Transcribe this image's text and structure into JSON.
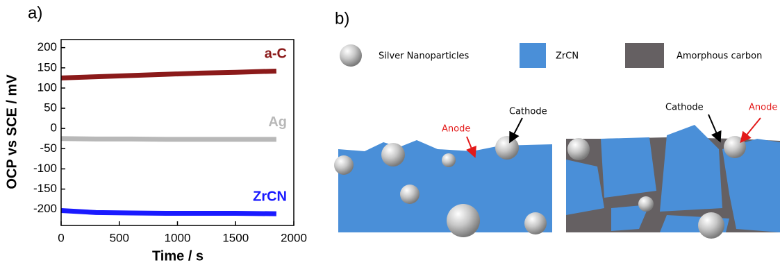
{
  "chart_data": {
    "type": "line",
    "panel_label": "a)",
    "x_label": "Time / s",
    "y_label": "OCP vs SCE / mV",
    "x": [
      0,
      300,
      600,
      900,
      1200,
      1500,
      1850
    ],
    "series": [
      {
        "name": "a-C",
        "color": "#8b1a1a",
        "values": [
          125,
          128,
          131,
          134,
          137,
          139,
          142
        ]
      },
      {
        "name": "Ag",
        "color": "#b8b8b8",
        "values": [
          -25,
          -26,
          -26,
          -27,
          -27,
          -27,
          -27
        ]
      },
      {
        "name": "ZrCN",
        "color": "#1a1aff",
        "values": [
          -203,
          -208,
          -209,
          -210,
          -210,
          -210,
          -211
        ]
      }
    ],
    "xlim": [
      0,
      2000
    ],
    "xticks": [
      0,
      500,
      1000,
      1500,
      2000
    ],
    "ylim": [
      -240,
      220
    ],
    "yticks": [
      -200,
      -150,
      -100,
      -50,
      0,
      50,
      100,
      150,
      200
    ]
  },
  "diagram": {
    "panel_label": "b)",
    "legend": [
      "Silver Nanoparticles",
      "ZrCN",
      "Amorphous carbon"
    ],
    "left": {
      "anode": "Anode",
      "cathode": "Cathode"
    },
    "right": {
      "cathode": "Cathode",
      "anode": "Anode"
    }
  }
}
